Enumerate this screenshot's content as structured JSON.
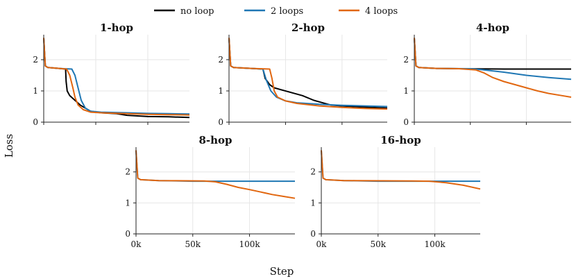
{
  "figure": {
    "xlabel": "Step",
    "ylabel": "Loss"
  },
  "legend": {
    "placement": "top-center",
    "items": [
      {
        "name": "no loop",
        "color": "#000000"
      },
      {
        "name": "2 loops",
        "color": "#1f77b4"
      },
      {
        "name": "4 loops",
        "color": "#e1660f"
      }
    ]
  },
  "chart_data": [
    {
      "type": "line",
      "title": "1-hop",
      "xlim": [
        0,
        140000
      ],
      "ylim": [
        0,
        2.8
      ],
      "yticks": [
        0,
        1,
        2
      ],
      "xtick_labels_shown": false,
      "grid": true,
      "series": [
        {
          "name": "no loop",
          "color": "#000000",
          "points": [
            [
              0,
              2.7
            ],
            [
              1500,
              1.8
            ],
            [
              4000,
              1.75
            ],
            [
              15000,
              1.72
            ],
            [
              21000,
              1.7
            ],
            [
              21500,
              1.3
            ],
            [
              22500,
              1.0
            ],
            [
              25000,
              0.85
            ],
            [
              30000,
              0.7
            ],
            [
              35000,
              0.55
            ],
            [
              40000,
              0.45
            ],
            [
              45000,
              0.35
            ],
            [
              55000,
              0.3
            ],
            [
              70000,
              0.27
            ],
            [
              80000,
              0.22
            ],
            [
              100000,
              0.18
            ],
            [
              120000,
              0.17
            ],
            [
              140000,
              0.15
            ]
          ]
        },
        {
          "name": "2 loops",
          "color": "#1f77b4",
          "points": [
            [
              0,
              2.7
            ],
            [
              1500,
              1.8
            ],
            [
              4000,
              1.75
            ],
            [
              15000,
              1.72
            ],
            [
              27000,
              1.7
            ],
            [
              30000,
              1.5
            ],
            [
              33000,
              1.1
            ],
            [
              36000,
              0.7
            ],
            [
              40000,
              0.45
            ],
            [
              45000,
              0.35
            ],
            [
              55000,
              0.32
            ],
            [
              80000,
              0.3
            ],
            [
              100000,
              0.28
            ],
            [
              120000,
              0.27
            ],
            [
              140000,
              0.26
            ]
          ]
        },
        {
          "name": "4 loops",
          "color": "#e1660f",
          "points": [
            [
              0,
              2.7
            ],
            [
              1500,
              1.8
            ],
            [
              4000,
              1.75
            ],
            [
              15000,
              1.72
            ],
            [
              22000,
              1.7
            ],
            [
              25000,
              1.5
            ],
            [
              28000,
              1.1
            ],
            [
              30000,
              0.8
            ],
            [
              33000,
              0.55
            ],
            [
              38000,
              0.4
            ],
            [
              45000,
              0.32
            ],
            [
              55000,
              0.3
            ],
            [
              80000,
              0.27
            ],
            [
              100000,
              0.25
            ],
            [
              120000,
              0.24
            ],
            [
              140000,
              0.23
            ]
          ]
        }
      ]
    },
    {
      "type": "line",
      "title": "2-hop",
      "xlim": [
        0,
        140000
      ],
      "ylim": [
        0,
        2.8
      ],
      "yticks": [
        0,
        1,
        2
      ],
      "xtick_labels_shown": false,
      "grid": true,
      "series": [
        {
          "name": "no loop",
          "color": "#000000",
          "points": [
            [
              0,
              2.7
            ],
            [
              1500,
              1.8
            ],
            [
              4000,
              1.75
            ],
            [
              20000,
              1.72
            ],
            [
              30000,
              1.7
            ],
            [
              32000,
              1.4
            ],
            [
              36000,
              1.2
            ],
            [
              40000,
              1.1
            ],
            [
              45000,
              1.05
            ],
            [
              55000,
              0.95
            ],
            [
              65000,
              0.85
            ],
            [
              75000,
              0.7
            ],
            [
              80000,
              0.65
            ],
            [
              90000,
              0.55
            ],
            [
              100000,
              0.52
            ],
            [
              120000,
              0.48
            ],
            [
              140000,
              0.45
            ]
          ]
        },
        {
          "name": "2 loops",
          "color": "#1f77b4",
          "points": [
            [
              0,
              2.7
            ],
            [
              1500,
              1.8
            ],
            [
              4000,
              1.75
            ],
            [
              20000,
              1.72
            ],
            [
              30000,
              1.7
            ],
            [
              33000,
              1.35
            ],
            [
              37000,
              1.0
            ],
            [
              42000,
              0.8
            ],
            [
              50000,
              0.68
            ],
            [
              60000,
              0.62
            ],
            [
              80000,
              0.57
            ],
            [
              100000,
              0.54
            ],
            [
              120000,
              0.52
            ],
            [
              140000,
              0.5
            ]
          ]
        },
        {
          "name": "4 loops",
          "color": "#e1660f",
          "points": [
            [
              0,
              2.7
            ],
            [
              1500,
              1.8
            ],
            [
              4000,
              1.75
            ],
            [
              20000,
              1.72
            ],
            [
              36000,
              1.7
            ],
            [
              38000,
              1.4
            ],
            [
              40000,
              1.0
            ],
            [
              43000,
              0.8
            ],
            [
              50000,
              0.68
            ],
            [
              60000,
              0.6
            ],
            [
              80000,
              0.52
            ],
            [
              100000,
              0.47
            ],
            [
              120000,
              0.44
            ],
            [
              140000,
              0.42
            ]
          ]
        }
      ]
    },
    {
      "type": "line",
      "title": "4-hop",
      "xlim": [
        0,
        140000
      ],
      "ylim": [
        0,
        2.8
      ],
      "yticks": [
        0,
        1,
        2
      ],
      "xtick_labels_shown": false,
      "grid": true,
      "series": [
        {
          "name": "no loop",
          "color": "#000000",
          "points": [
            [
              0,
              2.7
            ],
            [
              1500,
              1.8
            ],
            [
              4000,
              1.75
            ],
            [
              20000,
              1.72
            ],
            [
              40000,
              1.71
            ],
            [
              80000,
              1.7
            ],
            [
              140000,
              1.7
            ]
          ]
        },
        {
          "name": "2 loops",
          "color": "#1f77b4",
          "points": [
            [
              0,
              2.7
            ],
            [
              1500,
              1.8
            ],
            [
              4000,
              1.75
            ],
            [
              20000,
              1.72
            ],
            [
              50000,
              1.71
            ],
            [
              60000,
              1.68
            ],
            [
              80000,
              1.6
            ],
            [
              100000,
              1.5
            ],
            [
              120000,
              1.43
            ],
            [
              140000,
              1.37
            ]
          ]
        },
        {
          "name": "4 loops",
          "color": "#e1660f",
          "points": [
            [
              0,
              2.7
            ],
            [
              1500,
              1.8
            ],
            [
              4000,
              1.75
            ],
            [
              20000,
              1.72
            ],
            [
              40000,
              1.71
            ],
            [
              55000,
              1.67
            ],
            [
              62000,
              1.58
            ],
            [
              70000,
              1.43
            ],
            [
              80000,
              1.3
            ],
            [
              90000,
              1.2
            ],
            [
              100000,
              1.1
            ],
            [
              110000,
              1.0
            ],
            [
              120000,
              0.92
            ],
            [
              130000,
              0.86
            ],
            [
              140000,
              0.8
            ]
          ]
        }
      ]
    },
    {
      "type": "line",
      "title": "8-hop",
      "xlim": [
        0,
        140000
      ],
      "ylim": [
        0,
        2.8
      ],
      "yticks": [
        0,
        1,
        2
      ],
      "xticks": [
        0,
        50000,
        100000
      ],
      "xtick_labels": [
        "0k",
        "50k",
        "100k"
      ],
      "grid": true,
      "series": [
        {
          "name": "2 loops",
          "color": "#1f77b4",
          "points": [
            [
              0,
              2.7
            ],
            [
              1500,
              1.8
            ],
            [
              4000,
              1.75
            ],
            [
              20000,
              1.72
            ],
            [
              50000,
              1.7
            ],
            [
              140000,
              1.7
            ]
          ]
        },
        {
          "name": "4 loops",
          "color": "#e1660f",
          "points": [
            [
              0,
              2.7
            ],
            [
              1500,
              1.8
            ],
            [
              4000,
              1.75
            ],
            [
              20000,
              1.72
            ],
            [
              60000,
              1.71
            ],
            [
              70000,
              1.68
            ],
            [
              80000,
              1.6
            ],
            [
              90000,
              1.5
            ],
            [
              100000,
              1.43
            ],
            [
              110000,
              1.35
            ],
            [
              120000,
              1.27
            ],
            [
              130000,
              1.21
            ],
            [
              140000,
              1.15
            ]
          ]
        }
      ]
    },
    {
      "type": "line",
      "title": "16-hop",
      "xlim": [
        0,
        140000
      ],
      "ylim": [
        0,
        2.8
      ],
      "yticks": [
        0,
        1,
        2
      ],
      "xticks": [
        0,
        50000,
        100000
      ],
      "xtick_labels": [
        "0k",
        "50k",
        "100k"
      ],
      "grid": true,
      "series": [
        {
          "name": "2 loops",
          "color": "#1f77b4",
          "points": [
            [
              0,
              2.7
            ],
            [
              1500,
              1.8
            ],
            [
              4000,
              1.75
            ],
            [
              20000,
              1.72
            ],
            [
              50000,
              1.7
            ],
            [
              140000,
              1.7
            ]
          ]
        },
        {
          "name": "4 loops",
          "color": "#e1660f",
          "points": [
            [
              0,
              2.7
            ],
            [
              1500,
              1.8
            ],
            [
              4000,
              1.75
            ],
            [
              20000,
              1.72
            ],
            [
              80000,
              1.71
            ],
            [
              95000,
              1.7
            ],
            [
              110000,
              1.65
            ],
            [
              125000,
              1.57
            ],
            [
              140000,
              1.45
            ]
          ]
        }
      ]
    }
  ]
}
